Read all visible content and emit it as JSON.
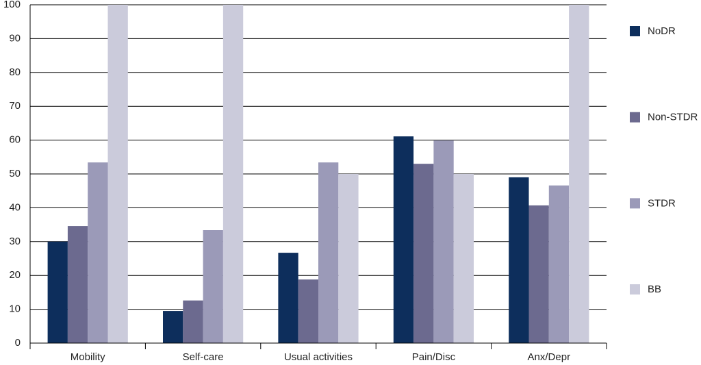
{
  "chart_data": {
    "type": "bar",
    "categories": [
      "Mobility",
      "Self-care",
      "Usual activities",
      "Pain/Disc",
      "Anx/Depr"
    ],
    "series": [
      {
        "name": "NoDR",
        "color": "#0d2e5c",
        "values": [
          30.0,
          9.5,
          26.7,
          61.1,
          49.0
        ]
      },
      {
        "name": "Non-STDR",
        "color": "#6c6a8f",
        "values": [
          34.6,
          12.6,
          18.8,
          53.0,
          40.7
        ]
      },
      {
        "name": "STDR",
        "color": "#9b9ab8",
        "values": [
          53.4,
          33.4,
          53.4,
          59.9,
          46.6
        ]
      },
      {
        "name": "BB",
        "color": "#cbcbdb",
        "values": [
          100,
          100,
          50,
          50,
          100
        ]
      }
    ],
    "ylim": [
      0,
      100
    ],
    "yticks": [
      0,
      10,
      20,
      30,
      40,
      50,
      60,
      70,
      80,
      90,
      100
    ],
    "grid": true,
    "legend": "right"
  }
}
